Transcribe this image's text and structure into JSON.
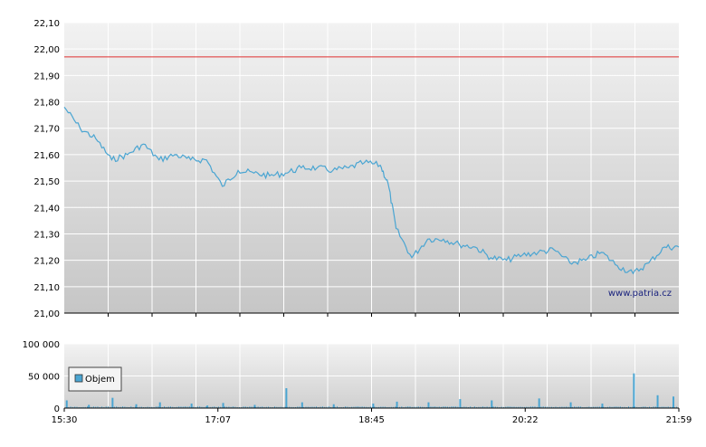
{
  "chart_data": [
    {
      "type": "line",
      "ylim": [
        21.0,
        22.1
      ],
      "y_ticks": [
        "21,00",
        "21,10",
        "21,20",
        "21,30",
        "21,40",
        "21,50",
        "21,60",
        "21,70",
        "21,80",
        "21,90",
        "22,00",
        "22,10"
      ],
      "reference_value": 21.97,
      "reference_color": "#e03030",
      "series_color": "#4aa5d2",
      "watermark": "www.patria.cz",
      "grid": true,
      "x": [
        "15:30",
        "15:40",
        "15:50",
        "16:00",
        "16:10",
        "16:20",
        "16:30",
        "16:40",
        "16:50",
        "17:00",
        "17:10",
        "17:20",
        "17:30",
        "17:40",
        "17:50",
        "18:00",
        "18:10",
        "18:20",
        "18:30",
        "18:40",
        "18:50",
        "18:55",
        "19:00",
        "19:10",
        "19:20",
        "19:30",
        "19:40",
        "19:50",
        "20:00",
        "20:10",
        "20:20",
        "20:30",
        "20:40",
        "20:50",
        "21:00",
        "21:10",
        "21:20",
        "21:30",
        "21:40",
        "21:50",
        "21:59"
      ],
      "y": [
        21.78,
        21.7,
        21.66,
        21.58,
        21.6,
        21.64,
        21.58,
        21.6,
        21.58,
        21.58,
        21.48,
        21.54,
        21.53,
        21.52,
        21.53,
        21.55,
        21.55,
        21.54,
        21.55,
        21.57,
        21.56,
        21.49,
        21.32,
        21.21,
        21.28,
        21.28,
        21.26,
        21.25,
        21.21,
        21.2,
        21.22,
        21.23,
        21.24,
        21.19,
        21.2,
        21.23,
        21.18,
        21.15,
        21.19,
        21.25,
        21.25
      ]
    },
    {
      "type": "bar",
      "name": "Objem",
      "ylim": [
        0,
        100000
      ],
      "y_ticks": [
        "0",
        "50 000",
        "100 000"
      ],
      "legend": "Objem",
      "legend_position": "left",
      "x_ticks": [
        "15:30",
        "17:07",
        "18:45",
        "20:22",
        "21:59"
      ],
      "bars": [
        {
          "t": "15:31",
          "v": 12000
        },
        {
          "t": "15:45",
          "v": 5000
        },
        {
          "t": "16:00",
          "v": 16000
        },
        {
          "t": "16:15",
          "v": 6000
        },
        {
          "t": "16:30",
          "v": 9000
        },
        {
          "t": "16:50",
          "v": 7000
        },
        {
          "t": "17:00",
          "v": 4000
        },
        {
          "t": "17:10",
          "v": 8000
        },
        {
          "t": "17:30",
          "v": 5000
        },
        {
          "t": "17:50",
          "v": 31000
        },
        {
          "t": "18:00",
          "v": 9000
        },
        {
          "t": "18:20",
          "v": 6000
        },
        {
          "t": "18:45",
          "v": 7000
        },
        {
          "t": "19:00",
          "v": 10000
        },
        {
          "t": "19:20",
          "v": 9000
        },
        {
          "t": "19:40",
          "v": 14000
        },
        {
          "t": "20:00",
          "v": 12000
        },
        {
          "t": "20:30",
          "v": 15000
        },
        {
          "t": "20:50",
          "v": 9000
        },
        {
          "t": "21:10",
          "v": 7000
        },
        {
          "t": "21:30",
          "v": 54000
        },
        {
          "t": "21:45",
          "v": 20000
        },
        {
          "t": "21:55",
          "v": 18000
        }
      ]
    }
  ]
}
